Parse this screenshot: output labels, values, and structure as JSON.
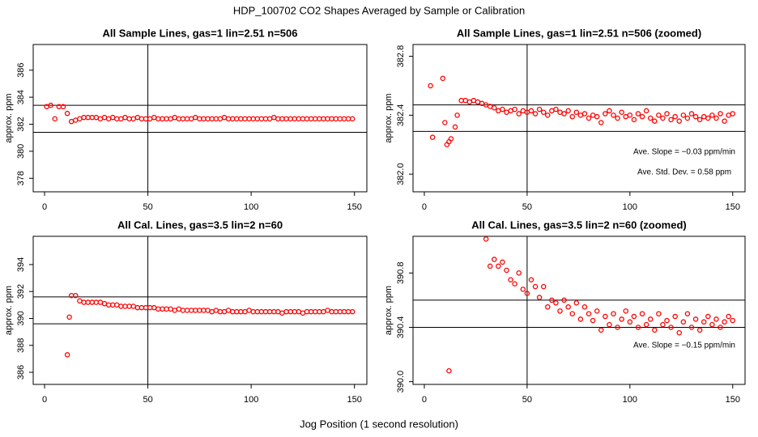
{
  "title": "HDP_100702  CO2 Shapes Averaged by Sample or Calibration",
  "x_label": "Jog Position (1 second resolution)",
  "chart_data": [
    {
      "type": "scatter",
      "title": "All Sample Lines, gas=1 lin=2.51 n=506",
      "y_label": "approx. ppm",
      "color": "#ff0000",
      "xlim": [
        -5.5,
        156
      ],
      "xticks": [
        0,
        50,
        100,
        150
      ],
      "ylim": [
        377,
        387.9
      ],
      "yticks": [
        378,
        380,
        382,
        384,
        386
      ],
      "hlines": [
        383.4,
        381.4
      ],
      "vlines": [
        50
      ],
      "x": [
        1,
        3,
        5,
        7,
        9,
        11,
        13,
        15,
        17,
        19,
        21,
        23,
        25,
        27,
        29,
        31,
        33,
        35,
        37,
        39,
        41,
        43,
        45,
        47,
        49,
        51,
        53,
        55,
        57,
        59,
        61,
        63,
        65,
        67,
        69,
        71,
        73,
        75,
        77,
        79,
        81,
        83,
        85,
        87,
        89,
        91,
        93,
        95,
        97,
        99,
        101,
        103,
        105,
        107,
        109,
        111,
        113,
        115,
        117,
        119,
        121,
        123,
        125,
        127,
        129,
        131,
        133,
        135,
        137,
        139,
        141,
        143,
        145,
        147,
        149
      ],
      "values": [
        383.3,
        383.4,
        382.4,
        383.3,
        383.3,
        382.8,
        382.2,
        382.3,
        382.4,
        382.5,
        382.5,
        382.5,
        382.5,
        382.4,
        382.5,
        382.4,
        382.5,
        382.4,
        382.4,
        382.5,
        382.4,
        382.4,
        382.5,
        382.4,
        382.4,
        382.4,
        382.5,
        382.4,
        382.4,
        382.4,
        382.4,
        382.5,
        382.4,
        382.4,
        382.4,
        382.4,
        382.5,
        382.4,
        382.4,
        382.4,
        382.4,
        382.4,
        382.4,
        382.5,
        382.4,
        382.4,
        382.4,
        382.4,
        382.4,
        382.4,
        382.4,
        382.4,
        382.4,
        382.4,
        382.4,
        382.5,
        382.4,
        382.4,
        382.4,
        382.4,
        382.4,
        382.4,
        382.4,
        382.4,
        382.4,
        382.4,
        382.4,
        382.4,
        382.4,
        382.4,
        382.4,
        382.4,
        382.4,
        382.4,
        382.4
      ]
    },
    {
      "type": "scatter",
      "title": "All Sample Lines, gas=1 lin=2.51 n=506 (zoomed)",
      "y_label": "approx. ppm",
      "color": "#ff0000",
      "xlim": [
        -5.5,
        156
      ],
      "xticks": [
        0,
        50,
        100,
        150
      ],
      "ylim": [
        381.88,
        382.88
      ],
      "yticks": [
        {
          "value": 382,
          "label": "382.0"
        },
        382.4,
        382.8
      ],
      "hlines": [
        382.47,
        382.29
      ],
      "vlines": [
        50
      ],
      "annotations": [
        "Ave. Slope =  −0.03  ppm/min",
        "Ave. Std. Dev. =  0.58  ppm"
      ],
      "x": [
        3,
        4,
        9,
        10,
        11,
        12,
        13,
        15,
        16,
        18,
        20,
        22,
        24,
        26,
        28,
        30,
        32,
        34,
        36,
        38,
        40,
        42,
        44,
        46,
        48,
        50,
        52,
        54,
        56,
        58,
        60,
        62,
        64,
        66,
        68,
        70,
        72,
        74,
        76,
        78,
        80,
        82,
        84,
        86,
        88,
        90,
        92,
        94,
        96,
        98,
        100,
        102,
        104,
        106,
        108,
        110,
        112,
        114,
        116,
        118,
        120,
        122,
        124,
        126,
        128,
        130,
        132,
        134,
        136,
        138,
        140,
        142,
        144,
        146,
        148,
        150
      ],
      "values": [
        382.6,
        382.25,
        382.65,
        382.35,
        382.2,
        382.22,
        382.24,
        382.32,
        382.4,
        382.5,
        382.5,
        382.49,
        382.5,
        382.49,
        382.48,
        382.47,
        382.46,
        382.45,
        382.43,
        382.44,
        382.42,
        382.43,
        382.44,
        382.41,
        382.43,
        382.42,
        382.43,
        382.41,
        382.44,
        382.42,
        382.4,
        382.43,
        382.44,
        382.42,
        382.41,
        382.43,
        382.39,
        382.42,
        382.4,
        382.41,
        382.38,
        382.4,
        382.39,
        382.35,
        382.41,
        382.43,
        382.4,
        382.38,
        382.42,
        382.39,
        382.4,
        382.37,
        382.41,
        382.39,
        382.43,
        382.38,
        382.36,
        382.4,
        382.38,
        382.41,
        382.37,
        382.39,
        382.36,
        382.4,
        382.38,
        382.41,
        382.39,
        382.37,
        382.39,
        382.38,
        382.4,
        382.38,
        382.41,
        382.36,
        382.4,
        382.41
      ]
    },
    {
      "type": "scatter",
      "title": "All Cal. Lines, gas=3.5 lin=2 n=60",
      "y_label": "approx. ppm",
      "color": "#ff0000",
      "xlim": [
        -5.5,
        156
      ],
      "xticks": [
        0,
        50,
        100,
        150
      ],
      "ylim": [
        385.1,
        396.1
      ],
      "yticks": [
        386,
        388,
        390,
        392,
        394
      ],
      "hlines": [
        391.6,
        389.6
      ],
      "vlines": [
        50
      ],
      "x": [
        11,
        12,
        13,
        15,
        17,
        19,
        21,
        23,
        25,
        27,
        29,
        31,
        33,
        35,
        37,
        39,
        41,
        43,
        45,
        47,
        49,
        51,
        53,
        55,
        57,
        59,
        61,
        63,
        65,
        67,
        69,
        71,
        73,
        75,
        77,
        79,
        81,
        83,
        85,
        87,
        89,
        91,
        93,
        95,
        97,
        99,
        101,
        103,
        105,
        107,
        109,
        111,
        113,
        115,
        117,
        119,
        121,
        123,
        125,
        127,
        129,
        131,
        133,
        135,
        137,
        139,
        141,
        143,
        145,
        147,
        149
      ],
      "values": [
        387.3,
        390.1,
        391.7,
        391.7,
        391.3,
        391.2,
        391.2,
        391.2,
        391.2,
        391.2,
        391.1,
        391.0,
        391.0,
        391.0,
        390.9,
        390.9,
        390.9,
        390.9,
        390.8,
        390.8,
        390.8,
        390.8,
        390.8,
        390.7,
        390.7,
        390.7,
        390.7,
        390.6,
        390.7,
        390.6,
        390.6,
        390.6,
        390.6,
        390.6,
        390.6,
        390.6,
        390.5,
        390.6,
        390.5,
        390.5,
        390.6,
        390.5,
        390.5,
        390.5,
        390.5,
        390.6,
        390.5,
        390.5,
        390.5,
        390.5,
        390.5,
        390.5,
        390.5,
        390.4,
        390.5,
        390.5,
        390.5,
        390.5,
        390.4,
        390.5,
        390.5,
        390.5,
        390.5,
        390.5,
        390.6,
        390.5,
        390.5,
        390.5,
        390.5,
        390.5,
        390.5
      ]
    },
    {
      "type": "scatter",
      "title": "All Cal. Lines, gas=3.5 lin=2 n=60 (zoomed)",
      "y_label": "approx. ppm",
      "color": "#ff0000",
      "xlim": [
        -5.5,
        156
      ],
      "xticks": [
        0,
        50,
        100,
        150
      ],
      "ylim": [
        389.98,
        391.07
      ],
      "yticks": [
        {
          "value": 390,
          "label": "390.0"
        },
        390.4,
        390.8
      ],
      "hlines": [
        390.6,
        390.4
      ],
      "vlines": [
        50
      ],
      "annotations": [
        "Ave. Slope =  −0.15  ppm/min"
      ],
      "x": [
        12,
        30,
        32,
        34,
        36,
        38,
        40,
        42,
        44,
        46,
        48,
        50,
        52,
        54,
        56,
        58,
        60,
        62,
        64,
        66,
        68,
        70,
        72,
        74,
        76,
        78,
        80,
        82,
        84,
        86,
        88,
        90,
        92,
        94,
        96,
        98,
        100,
        102,
        104,
        106,
        108,
        110,
        112,
        114,
        116,
        118,
        120,
        122,
        124,
        126,
        128,
        130,
        132,
        134,
        136,
        138,
        140,
        142,
        144,
        146,
        148,
        150
      ],
      "values": [
        390.08,
        391.05,
        390.85,
        390.9,
        390.85,
        390.88,
        390.82,
        390.75,
        390.72,
        390.8,
        390.68,
        390.65,
        390.75,
        390.7,
        390.62,
        390.7,
        390.55,
        390.6,
        390.58,
        390.52,
        390.6,
        390.55,
        390.5,
        390.58,
        390.46,
        390.55,
        390.5,
        390.45,
        390.52,
        390.38,
        390.48,
        390.42,
        390.5,
        390.4,
        390.46,
        390.52,
        390.44,
        390.48,
        390.4,
        390.5,
        390.42,
        390.46,
        390.38,
        390.5,
        390.42,
        390.45,
        390.4,
        390.48,
        390.36,
        390.44,
        390.5,
        390.4,
        390.46,
        390.38,
        390.44,
        390.48,
        390.42,
        390.46,
        390.4,
        390.44,
        390.48,
        390.45
      ]
    }
  ]
}
